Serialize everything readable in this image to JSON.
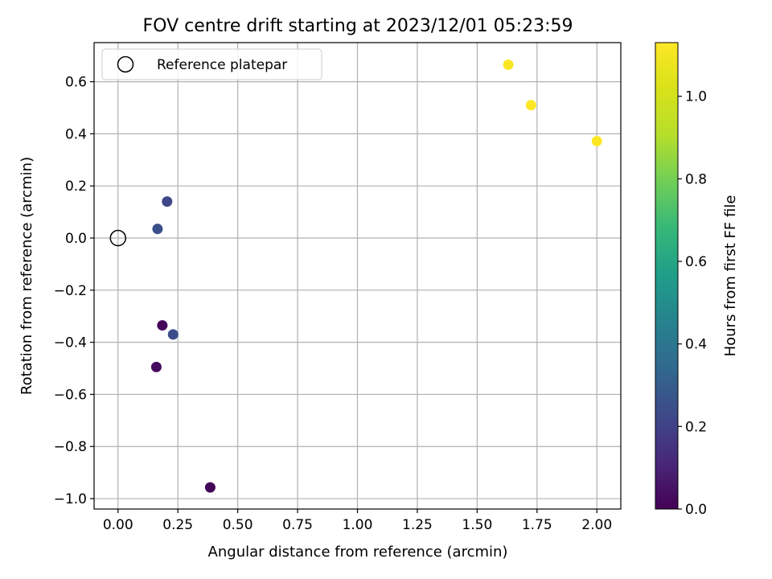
{
  "chart_data": {
    "type": "scatter",
    "title": "FOV centre drift starting at 2023/12/01 05:23:59",
    "xlabel": "Angular distance from reference (arcmin)",
    "ylabel": "Rotation from reference (arcmin)",
    "xlim": [
      -0.1,
      2.1
    ],
    "ylim": [
      -1.04,
      0.75
    ],
    "xticks": [
      0.0,
      0.25,
      0.5,
      0.75,
      1.0,
      1.25,
      1.5,
      1.75,
      2.0
    ],
    "xtick_labels": [
      "0.00",
      "0.25",
      "0.50",
      "0.75",
      "1.00",
      "1.25",
      "1.50",
      "1.75",
      "2.00"
    ],
    "yticks": [
      -1.0,
      -0.8,
      -0.6,
      -0.4,
      -0.2,
      0.0,
      0.2,
      0.4,
      0.6
    ],
    "ytick_labels": [
      "−1.0",
      "−0.8",
      "−0.6",
      "−0.4",
      "−0.2",
      "0.0",
      "0.2",
      "0.4",
      "0.6"
    ],
    "grid": true,
    "legend": {
      "placement": "top-left",
      "label": "Reference platepar"
    },
    "reference_point": {
      "x": 0.0,
      "y": 0.0
    },
    "points": [
      {
        "x": 0.185,
        "y": -0.335,
        "hours": 0.02
      },
      {
        "x": 0.16,
        "y": -0.495,
        "hours": 0.03
      },
      {
        "x": 0.385,
        "y": -0.957,
        "hours": 0.01
      },
      {
        "x": 0.165,
        "y": 0.035,
        "hours": 0.25
      },
      {
        "x": 0.205,
        "y": 0.14,
        "hours": 0.22
      },
      {
        "x": 0.23,
        "y": -0.37,
        "hours": 0.24
      },
      {
        "x": 1.63,
        "y": 0.665,
        "hours": 1.12
      },
      {
        "x": 1.725,
        "y": 0.51,
        "hours": 1.13
      },
      {
        "x": 2.0,
        "y": 0.372,
        "hours": 1.13
      }
    ],
    "colorbar": {
      "label": "Hours from first FF file",
      "colormap": "viridis",
      "range": [
        0.0,
        1.13
      ],
      "ticks": [
        0.0,
        0.2,
        0.4,
        0.6,
        0.8,
        1.0
      ],
      "tick_labels": [
        "0.0",
        "0.2",
        "0.4",
        "0.6",
        "0.8",
        "1.0"
      ]
    }
  }
}
